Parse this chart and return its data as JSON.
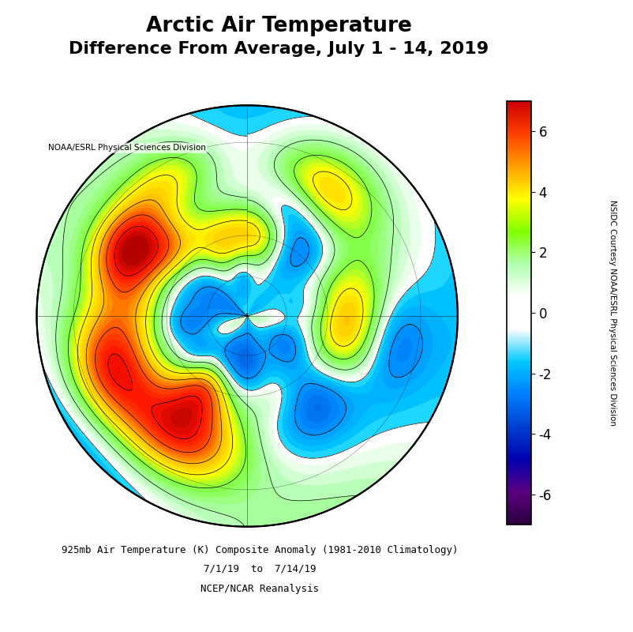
{
  "title_line1": "Arctic Air Temperature",
  "title_line2": "Difference From Average, July 1 - 14, 2019",
  "title_fontsize": 18,
  "subtitle": "NOAA/ESRL Physical Sciences Division",
  "footer_line1": "925mb Air Temperature (K) Composite Anomaly (1981-2010 Climatology)",
  "footer_line2": "7/1/19  to  7/14/19",
  "footer_line3": "NCEP/NCAR Reanalysis",
  "colorbar_label": "NSIDC Courtesy NOAA/ESRL Physical Sciences Division",
  "colorbar_ticks": [
    -6,
    -4,
    -2,
    0,
    2,
    4,
    6
  ],
  "vmin": -7,
  "vmax": 7,
  "cbar_colors": [
    "#2d0040",
    "#5a0080",
    "#0000b0",
    "#0040d0",
    "#0080ff",
    "#00c8ff",
    "#ffffff",
    "#ffffff",
    "#b0ffb0",
    "#80ff00",
    "#ffff00",
    "#ffa000",
    "#ff4000",
    "#cc0000"
  ],
  "map_cmap_stops": [
    [
      0.0,
      "#2d0040"
    ],
    [
      0.07,
      "#5a0080"
    ],
    [
      0.21,
      "#0000b0"
    ],
    [
      0.35,
      "#0060e0"
    ],
    [
      0.42,
      "#0090ff"
    ],
    [
      0.49,
      "#00d0ff"
    ],
    [
      0.5,
      "#ffffff"
    ],
    [
      0.51,
      "#ffffff"
    ],
    [
      0.57,
      "#b0ffb0"
    ],
    [
      0.64,
      "#80ff40"
    ],
    [
      0.71,
      "#ffff00"
    ],
    [
      0.78,
      "#ffc000"
    ],
    [
      0.86,
      "#ff5000"
    ],
    [
      0.93,
      "#ff1000"
    ],
    [
      1.0,
      "#aa0000"
    ]
  ]
}
